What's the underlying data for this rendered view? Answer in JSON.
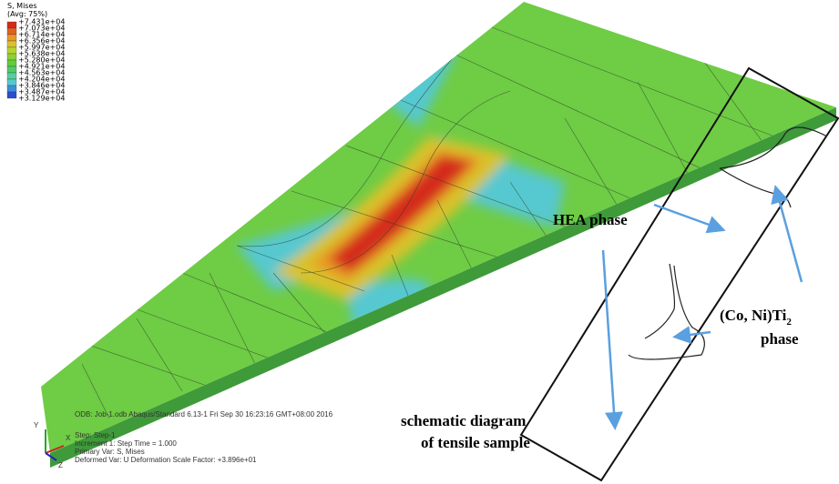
{
  "legend": {
    "title": "S, Mises",
    "subtitle": "(Avg: 75%)",
    "labels": [
      "+7.431e+04",
      "+7.073e+04",
      "+6.714e+04",
      "+6.356e+04",
      "+5.997e+04",
      "+5.638e+04",
      "+5.280e+04",
      "+4.921e+04",
      "+4.563e+04",
      "+4.204e+04",
      "+3.846e+04",
      "+3.487e+04",
      "+3.129e+04"
    ],
    "colors": [
      "#d42a1c",
      "#e2611f",
      "#e89a25",
      "#d8c22c",
      "#b6d52c",
      "#8dd132",
      "#62cc3a",
      "#4fcb6a",
      "#55cfa2",
      "#56c8d0",
      "#3c8fd8",
      "#2a4fd0"
    ]
  },
  "info": {
    "odb": "ODB: Job-1.odb    Abaqus/Standard 6.13-1    Fri Sep 30 16:23:16 GMT+08:00 2016",
    "step": "Step: Step-1",
    "increment": "Increment    1: Step Time =    1.000",
    "primary": "Primary Var: S, Mises",
    "deformed": "Deformed Var: U   Deformation Scale Factor: +3.896e+01"
  },
  "axes": {
    "x": "X",
    "y": "Y",
    "z": "Z"
  },
  "labels": {
    "hea": "HEA phase",
    "cmpd": "(Co, Ni)Ti",
    "cmpd_sub": "2",
    "phase": "phase",
    "schem1": "schematic diagram",
    "schem2": "of tensile sample"
  }
}
